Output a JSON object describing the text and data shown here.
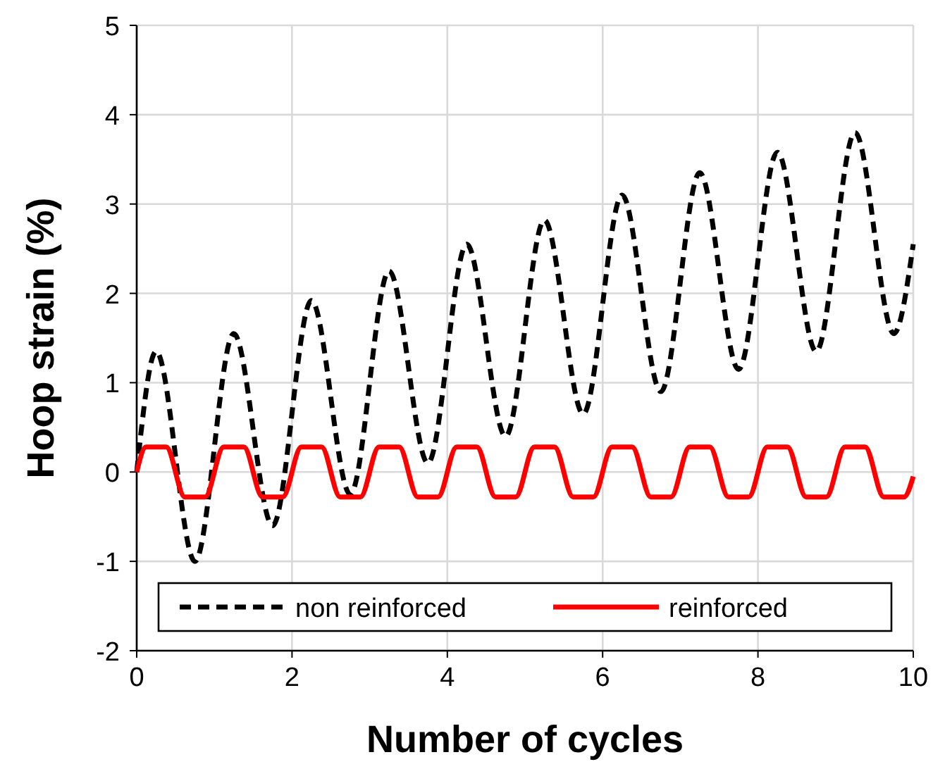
{
  "chart_data": {
    "type": "line",
    "xlabel": "Number of cycles",
    "ylabel": "Hoop strain (%)",
    "xlim": [
      0,
      10
    ],
    "ylim": [
      -2,
      5
    ],
    "xticks": [
      0,
      2,
      4,
      6,
      8,
      10
    ],
    "yticks": [
      -2,
      -1,
      0,
      1,
      2,
      3,
      4,
      5
    ],
    "grid": true,
    "legend": "bottom",
    "series": [
      {
        "name": "non reinforced",
        "color": "#000000",
        "line_style": "dashed",
        "x": [
          0,
          0.25,
          0.75,
          1.25,
          1.75,
          2.25,
          2.75,
          3.25,
          3.75,
          4.25,
          4.75,
          5.25,
          5.75,
          6.25,
          6.75,
          7.25,
          7.75,
          8.25,
          8.75,
          9.25,
          9.75,
          10
        ],
        "values": [
          0,
          1.35,
          -1.0,
          1.55,
          -0.6,
          1.92,
          -0.25,
          2.25,
          0.1,
          2.55,
          0.4,
          2.82,
          0.65,
          3.1,
          0.9,
          3.35,
          1.15,
          3.58,
          1.35,
          3.8,
          1.55,
          2.55
        ]
      },
      {
        "name": "reinforced",
        "color": "#ff0000",
        "line_style": "solid",
        "x": [
          0,
          0.12,
          0.38,
          0.62,
          0.88,
          1.12,
          1.38,
          1.62,
          1.88,
          2.12,
          2.38,
          2.62,
          2.88,
          3.12,
          3.38,
          3.62,
          3.88,
          4.12,
          4.38,
          4.62,
          4.88,
          5.12,
          5.38,
          5.62,
          5.88,
          6.12,
          6.38,
          6.62,
          6.88,
          7.12,
          7.38,
          7.62,
          7.88,
          8.12,
          8.38,
          8.62,
          8.88,
          9.12,
          9.38,
          9.62,
          9.88,
          10
        ],
        "values": [
          0,
          0.28,
          0.28,
          -0.28,
          -0.28,
          0.28,
          0.28,
          -0.28,
          -0.28,
          0.28,
          0.28,
          -0.28,
          -0.28,
          0.28,
          0.28,
          -0.28,
          -0.28,
          0.28,
          0.28,
          -0.28,
          -0.28,
          0.28,
          0.28,
          -0.28,
          -0.28,
          0.28,
          0.28,
          -0.28,
          -0.28,
          0.28,
          0.28,
          -0.28,
          -0.28,
          0.28,
          0.28,
          -0.28,
          -0.28,
          0.28,
          0.28,
          -0.28,
          -0.28,
          -0.05
        ]
      }
    ]
  }
}
